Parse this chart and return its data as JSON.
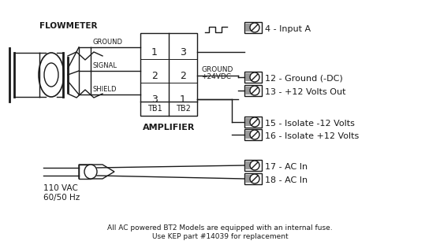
{
  "bg_color": "#ffffff",
  "line_color": "#1a1a1a",
  "gray_fill": "#999999",
  "terminal_labels": [
    "4 - Input A",
    "12 - Ground (-DC)",
    "13 - +12 Volts Out",
    "15 - Isolate -12 Volts",
    "16 - Isolate +12 Volts",
    "17 - AC In",
    "18 - AC In"
  ],
  "flowmeter_label": "FLOWMETER",
  "amplifier_label": "AMPLIFIER",
  "tb1_label": "TB1",
  "tb2_label": "TB2",
  "signal_labels": [
    "GROUND",
    "SIGNAL",
    "SHIELD"
  ],
  "tb1_nums": [
    "1",
    "2",
    "3"
  ],
  "tb2_nums": [
    "3",
    "2",
    "1"
  ],
  "ground_label": "GROUND",
  "plus24_label": "+24VDC",
  "vac_label": "110 VAC\n60/50 Hz",
  "footnote1": "All AC powered BT2 Models are equipped with an internal fuse.",
  "footnote2": "Use KEP part #14039 for replacement"
}
